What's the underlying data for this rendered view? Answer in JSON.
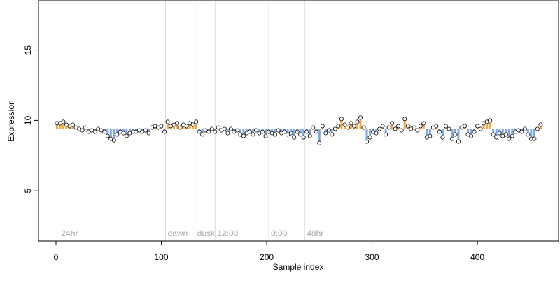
{
  "chart_data": {
    "type": "scatter",
    "x_label": "Sample index",
    "y_label": "Expression",
    "xlim": [
      -16.6,
      477
    ],
    "ylim": [
      1.44,
      18.5
    ],
    "xticks": [
      0,
      100,
      200,
      300,
      400
    ],
    "yticks": [
      5,
      10,
      15
    ],
    "baseline": 9.4,
    "color_above": "#f5a742",
    "color_below": "#80a8e0",
    "point_fill": "#ffffff",
    "vline_color": "#dddddd",
    "vlines": [
      104,
      132,
      151,
      202,
      236
    ],
    "annotations": [
      {
        "text": "24hr",
        "x": 3
      },
      {
        "text": "dawn",
        "x": 104
      },
      {
        "text": "dusk",
        "x": 132
      },
      {
        "text": "12:00",
        "x": 151
      },
      {
        "text": "0:00",
        "x": 202
      },
      {
        "text": "48hr",
        "x": 236
      }
    ],
    "x": [
      1,
      4,
      7,
      10,
      13,
      16,
      19,
      22,
      25,
      28,
      31,
      34,
      37,
      40,
      43,
      46,
      49,
      52,
      55,
      58,
      61,
      64,
      67,
      70,
      73,
      76,
      79,
      82,
      85,
      88,
      91,
      94,
      97,
      100,
      103,
      106,
      109,
      112,
      115,
      118,
      121,
      124,
      127,
      130,
      133,
      136,
      139,
      142,
      145,
      148,
      151,
      154,
      157,
      160,
      163,
      166,
      169,
      172,
      175,
      178,
      181,
      184,
      187,
      190,
      193,
      196,
      199,
      202,
      205,
      208,
      211,
      214,
      217,
      220,
      223,
      226,
      229,
      232,
      235,
      238,
      241,
      244,
      247,
      250,
      253,
      256,
      259,
      262,
      265,
      268,
      271,
      274,
      277,
      280,
      283,
      286,
      289,
      292,
      295,
      298,
      301,
      304,
      307,
      310,
      313,
      316,
      319,
      322,
      325,
      328,
      331,
      334,
      337,
      340,
      343,
      346,
      349,
      352,
      355,
      358,
      361,
      364,
      367,
      370,
      373,
      376,
      379,
      382,
      385,
      388,
      391,
      394,
      397,
      400,
      403,
      406,
      409,
      412,
      415,
      418,
      421,
      424,
      427,
      430,
      433,
      436,
      439,
      442,
      445,
      448,
      451,
      454,
      457,
      460
    ],
    "values": [
      9.8,
      9.8,
      9.9,
      9.7,
      9.6,
      9.7,
      9.5,
      9.4,
      9.3,
      9.5,
      9.2,
      9.3,
      9.2,
      9.4,
      9.3,
      9.2,
      8.9,
      8.7,
      8.6,
      9.0,
      9.2,
      9.1,
      8.9,
      9.1,
      9.2,
      9.2,
      9.3,
      9.2,
      9.3,
      9.1,
      9.5,
      9.6,
      9.5,
      9.6,
      9.2,
      9.9,
      9.6,
      9.7,
      9.8,
      9.5,
      9.7,
      9.6,
      9.8,
      9.7,
      9.9,
      9.2,
      9.0,
      9.3,
      9.2,
      9.4,
      9.2,
      9.5,
      9.3,
      9.4,
      9.1,
      9.4,
      9.2,
      9.3,
      9.0,
      8.9,
      9.1,
      9.2,
      9.0,
      9.3,
      9.1,
      9.2,
      8.9,
      9.2,
      9.1,
      9.0,
      9.3,
      9.1,
      9.2,
      9.0,
      9.1,
      8.8,
      9.2,
      9.0,
      8.8,
      9.2,
      8.9,
      9.5,
      9.2,
      8.4,
      9.6,
      9.1,
      9.3,
      9.0,
      9.4,
      9.6,
      10.1,
      9.7,
      9.5,
      9.8,
      9.6,
      9.9,
      10.2,
      9.5,
      8.5,
      8.8,
      9.2,
      9.1,
      9.4,
      9.6,
      9.0,
      9.5,
      9.8,
      9.4,
      9.6,
      9.3,
      10.1,
      9.6,
      9.4,
      9.5,
      9.3,
      9.6,
      9.8,
      8.8,
      8.9,
      9.5,
      9.6,
      9.2,
      8.8,
      9.6,
      9.4,
      8.7,
      9.0,
      8.5,
      9.5,
      9.6,
      9.0,
      8.9,
      9.2,
      9.6,
      9.4,
      9.8,
      9.9,
      10.0,
      9.0,
      8.8,
      9.1,
      8.9,
      9.0,
      8.7,
      8.9,
      9.2,
      9.3,
      9.2,
      9.4,
      9.0,
      8.7,
      8.7,
      9.4,
      9.7
    ]
  }
}
